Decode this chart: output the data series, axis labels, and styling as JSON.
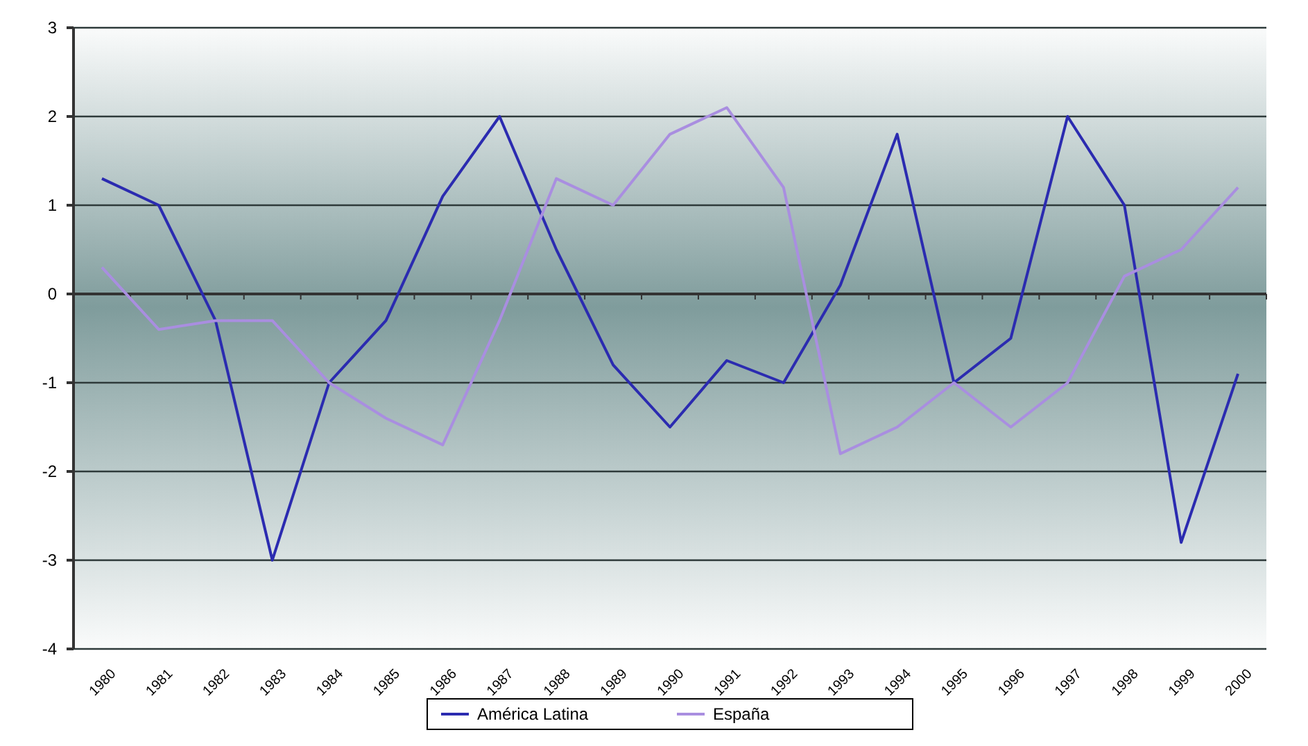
{
  "chart_data": {
    "type": "line",
    "categories": [
      "1980",
      "1981",
      "1982",
      "1983",
      "1984",
      "1985",
      "1986",
      "1987",
      "1988",
      "1989",
      "1990",
      "1991",
      "1992",
      "1993",
      "1994",
      "1995",
      "1996",
      "1997",
      "1998",
      "1999",
      "2000"
    ],
    "series": [
      {
        "name": "América Latina",
        "color": "#2b2bb0",
        "values": [
          1.3,
          1.0,
          -0.3,
          -3.0,
          -1.0,
          -0.3,
          1.1,
          2.0,
          0.5,
          -0.8,
          -1.5,
          -0.75,
          -1.0,
          0.1,
          1.8,
          -1.0,
          -0.5,
          2.0,
          1.0,
          -2.8,
          -0.9
        ]
      },
      {
        "name": "España",
        "color": "#a98ee0",
        "values": [
          0.3,
          -0.4,
          -0.3,
          -0.3,
          -1.0,
          -1.4,
          -1.7,
          -0.3,
          1.3,
          1.0,
          1.8,
          2.1,
          1.2,
          -1.8,
          -1.5,
          -1.0,
          -1.5,
          -1.0,
          0.2,
          0.5,
          1.2
        ]
      }
    ],
    "ylim": [
      -4,
      3
    ],
    "yticks": [
      -4,
      -3,
      -2,
      -1,
      0,
      1,
      2,
      3
    ],
    "grid": "y",
    "legend": "bottom",
    "marker": "none",
    "line_style": "solid"
  }
}
